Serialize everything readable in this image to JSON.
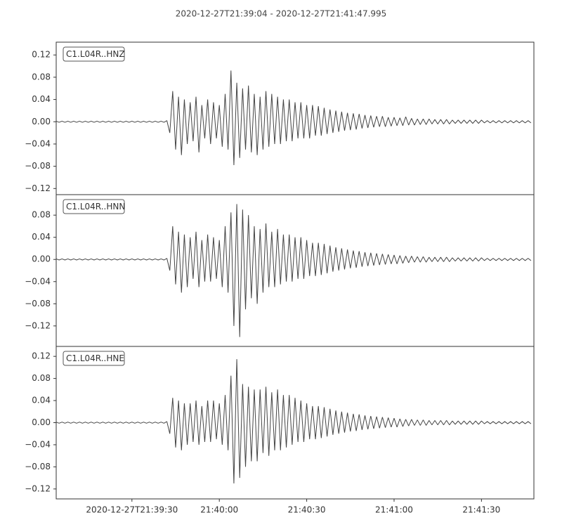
{
  "chart_data": [
    {
      "type": "line",
      "title": "2020-12-27T21:39:04  -  2020-12-27T21:41:47.995",
      "label": "C1.L04R..HNZ",
      "color": "#444444",
      "x": [
        0,
        1,
        2,
        3,
        4,
        5,
        6,
        7,
        8,
        9,
        10,
        11,
        12,
        13,
        14,
        15,
        16,
        17,
        18,
        19,
        20,
        21,
        22,
        23,
        24,
        25,
        26,
        27,
        28,
        29,
        30,
        31,
        32,
        33,
        34,
        35,
        36,
        37,
        38,
        39,
        40,
        41,
        42,
        43,
        44,
        45,
        46,
        47,
        48,
        49,
        50,
        51,
        52,
        53,
        54,
        55,
        56,
        57,
        58,
        59,
        60,
        61,
        62,
        63,
        64,
        65,
        66,
        67,
        68,
        69,
        70,
        71,
        72,
        73,
        74,
        75,
        76,
        77,
        78,
        79,
        80,
        81,
        82,
        83,
        84,
        85,
        86,
        87,
        88,
        89,
        90,
        91,
        92,
        93,
        94,
        95,
        96,
        97,
        98,
        99,
        100,
        101,
        102,
        103,
        104,
        105,
        106,
        107,
        108,
        109,
        110,
        111,
        112,
        113,
        114,
        115,
        116,
        117,
        118,
        119,
        120,
        121,
        122,
        123,
        124,
        125,
        126,
        127,
        128,
        129,
        130,
        131,
        132,
        133,
        134,
        135,
        136,
        137,
        138,
        139,
        140,
        141,
        142,
        143,
        144,
        145,
        146,
        147,
        148,
        149,
        150,
        151,
        152,
        153,
        154,
        155,
        156,
        157,
        158,
        159,
        160,
        161,
        162,
        163
      ],
      "values": [
        0.001,
        -0.001,
        0.001,
        -0.001,
        0.001,
        -0.001,
        0.001,
        -0.001,
        0.001,
        -0.001,
        0.001,
        -0.001,
        0.001,
        -0.001,
        0.001,
        -0.001,
        0.001,
        -0.001,
        0.001,
        -0.001,
        0.001,
        -0.001,
        0.001,
        -0.001,
        0.001,
        -0.001,
        0.001,
        -0.001,
        0.001,
        -0.001,
        0.001,
        -0.001,
        0.001,
        -0.001,
        0.001,
        -0.001,
        0.001,
        -0.001,
        0.002,
        -0.02,
        0.055,
        -0.05,
        0.045,
        -0.06,
        0.04,
        -0.04,
        0.035,
        -0.035,
        0.045,
        -0.055,
        0.03,
        -0.03,
        0.04,
        -0.04,
        0.035,
        -0.03,
        0.03,
        -0.045,
        0.05,
        -0.05,
        0.092,
        -0.078,
        0.07,
        -0.065,
        0.06,
        -0.05,
        0.065,
        -0.055,
        0.05,
        -0.06,
        0.045,
        -0.05,
        0.055,
        -0.045,
        0.05,
        -0.04,
        0.045,
        -0.04,
        0.04,
        -0.035,
        0.04,
        -0.035,
        0.035,
        -0.03,
        0.035,
        -0.03,
        0.03,
        -0.03,
        0.03,
        -0.025,
        0.028,
        -0.025,
        0.025,
        -0.022,
        0.022,
        -0.02,
        0.02,
        -0.018,
        0.018,
        -0.016,
        0.016,
        -0.015,
        0.015,
        -0.014,
        0.014,
        -0.012,
        0.012,
        -0.011,
        0.011,
        -0.01,
        0.01,
        -0.009,
        0.01,
        -0.009,
        0.008,
        -0.008,
        0.008,
        -0.007,
        0.007,
        -0.007,
        0.009,
        -0.006,
        0.006,
        -0.006,
        0.005,
        -0.005,
        0.005,
        -0.005,
        0.005,
        -0.004,
        0.004,
        -0.004,
        0.004,
        -0.004,
        0.004,
        -0.004,
        0.003,
        -0.003,
        0.003,
        -0.003,
        0.003,
        -0.003,
        0.003,
        -0.003,
        0.003,
        -0.003,
        0.003,
        -0.002,
        0.002,
        -0.002,
        0.002,
        -0.002,
        0.002,
        -0.002,
        0.002,
        -0.002,
        0.002,
        -0.002,
        0.002,
        -0.002,
        0.002,
        -0.002,
        0.002,
        -0.002
      ],
      "xlim": [
        0,
        164
      ],
      "ylim": [
        -0.131,
        0.143
      ],
      "yticks": [
        {
          "value": 0.12,
          "label": "0.12"
        },
        {
          "value": 0.08,
          "label": "0.08"
        },
        {
          "value": 0.04,
          "label": "0.04"
        },
        {
          "value": 0,
          "label": "0.00"
        },
        {
          "value": -0.04,
          "label": "−0.04"
        },
        {
          "value": -0.08,
          "label": "−0.08"
        },
        {
          "value": -0.12,
          "label": "−0.12"
        }
      ]
    },
    {
      "type": "line",
      "label": "C1.L04R..HNN",
      "color": "#444444",
      "x": [
        0,
        1,
        2,
        3,
        4,
        5,
        6,
        7,
        8,
        9,
        10,
        11,
        12,
        13,
        14,
        15,
        16,
        17,
        18,
        19,
        20,
        21,
        22,
        23,
        24,
        25,
        26,
        27,
        28,
        29,
        30,
        31,
        32,
        33,
        34,
        35,
        36,
        37,
        38,
        39,
        40,
        41,
        42,
        43,
        44,
        45,
        46,
        47,
        48,
        49,
        50,
        51,
        52,
        53,
        54,
        55,
        56,
        57,
        58,
        59,
        60,
        61,
        62,
        63,
        64,
        65,
        66,
        67,
        68,
        69,
        70,
        71,
        72,
        73,
        74,
        75,
        76,
        77,
        78,
        79,
        80,
        81,
        82,
        83,
        84,
        85,
        86,
        87,
        88,
        89,
        90,
        91,
        92,
        93,
        94,
        95,
        96,
        97,
        98,
        99,
        100,
        101,
        102,
        103,
        104,
        105,
        106,
        107,
        108,
        109,
        110,
        111,
        112,
        113,
        114,
        115,
        116,
        117,
        118,
        119,
        120,
        121,
        122,
        123,
        124,
        125,
        126,
        127,
        128,
        129,
        130,
        131,
        132,
        133,
        134,
        135,
        136,
        137,
        138,
        139,
        140,
        141,
        142,
        143,
        144,
        145,
        146,
        147,
        148,
        149,
        150,
        151,
        152,
        153,
        154,
        155,
        156,
        157,
        158,
        159,
        160,
        161,
        162,
        163
      ],
      "values": [
        0.001,
        -0.001,
        0.001,
        -0.001,
        0.001,
        -0.001,
        0.001,
        -0.001,
        0.001,
        -0.001,
        0.001,
        -0.001,
        0.001,
        -0.001,
        0.001,
        -0.001,
        0.001,
        -0.001,
        0.001,
        -0.001,
        0.001,
        -0.001,
        0.001,
        -0.001,
        0.001,
        -0.001,
        0.001,
        -0.001,
        0.001,
        -0.001,
        0.001,
        -0.001,
        0.001,
        -0.001,
        0.001,
        -0.001,
        0.001,
        -0.001,
        0.002,
        -0.02,
        0.06,
        -0.045,
        0.05,
        -0.06,
        0.045,
        -0.05,
        0.04,
        -0.035,
        0.05,
        -0.05,
        0.035,
        -0.04,
        0.045,
        -0.04,
        0.04,
        -0.035,
        0.035,
        -0.05,
        0.06,
        -0.06,
        0.085,
        -0.12,
        0.1,
        -0.14,
        0.09,
        -0.09,
        0.08,
        -0.07,
        0.06,
        -0.08,
        0.055,
        -0.06,
        0.065,
        -0.05,
        0.05,
        -0.05,
        0.055,
        -0.045,
        0.045,
        -0.04,
        0.045,
        -0.04,
        0.04,
        -0.035,
        0.04,
        -0.035,
        0.035,
        -0.03,
        0.03,
        -0.03,
        0.03,
        -0.028,
        0.028,
        -0.025,
        0.025,
        -0.022,
        0.022,
        -0.02,
        0.02,
        -0.018,
        0.018,
        -0.016,
        0.016,
        -0.015,
        0.015,
        -0.013,
        0.013,
        -0.012,
        0.012,
        -0.011,
        0.011,
        -0.01,
        0.01,
        -0.009,
        0.009,
        -0.008,
        0.008,
        -0.008,
        0.007,
        -0.007,
        0.006,
        -0.006,
        0.006,
        -0.005,
        0.005,
        -0.005,
        0.005,
        -0.005,
        0.004,
        -0.004,
        0.004,
        -0.004,
        0.004,
        -0.004,
        0.004,
        -0.004,
        0.003,
        -0.003,
        0.003,
        -0.003,
        0.003,
        -0.003,
        0.003,
        -0.003,
        0.003,
        -0.003,
        0.003,
        -0.002,
        0.002,
        -0.002,
        0.002,
        -0.002,
        0.002,
        -0.002,
        0.002,
        -0.002,
        0.002,
        -0.002,
        0.002,
        -0.002,
        0.002,
        -0.002,
        0.002,
        -0.002
      ],
      "xlim": [
        0,
        164
      ],
      "ylim": [
        -0.157,
        0.117
      ],
      "yticks": [
        {
          "value": 0.08,
          "label": "0.08"
        },
        {
          "value": 0.04,
          "label": "0.04"
        },
        {
          "value": 0,
          "label": "0.00"
        },
        {
          "value": -0.04,
          "label": "−0.04"
        },
        {
          "value": -0.08,
          "label": "−0.08"
        },
        {
          "value": -0.12,
          "label": "−0.12"
        }
      ]
    },
    {
      "type": "line",
      "label": "C1.L04R..HNE",
      "color": "#444444",
      "x": [
        0,
        1,
        2,
        3,
        4,
        5,
        6,
        7,
        8,
        9,
        10,
        11,
        12,
        13,
        14,
        15,
        16,
        17,
        18,
        19,
        20,
        21,
        22,
        23,
        24,
        25,
        26,
        27,
        28,
        29,
        30,
        31,
        32,
        33,
        34,
        35,
        36,
        37,
        38,
        39,
        40,
        41,
        42,
        43,
        44,
        45,
        46,
        47,
        48,
        49,
        50,
        51,
        52,
        53,
        54,
        55,
        56,
        57,
        58,
        59,
        60,
        61,
        62,
        63,
        64,
        65,
        66,
        67,
        68,
        69,
        70,
        71,
        72,
        73,
        74,
        75,
        76,
        77,
        78,
        79,
        80,
        81,
        82,
        83,
        84,
        85,
        86,
        87,
        88,
        89,
        90,
        91,
        92,
        93,
        94,
        95,
        96,
        97,
        98,
        99,
        100,
        101,
        102,
        103,
        104,
        105,
        106,
        107,
        108,
        109,
        110,
        111,
        112,
        113,
        114,
        115,
        116,
        117,
        118,
        119,
        120,
        121,
        122,
        123,
        124,
        125,
        126,
        127,
        128,
        129,
        130,
        131,
        132,
        133,
        134,
        135,
        136,
        137,
        138,
        139,
        140,
        141,
        142,
        143,
        144,
        145,
        146,
        147,
        148,
        149,
        150,
        151,
        152,
        153,
        154,
        155,
        156,
        157,
        158,
        159,
        160,
        161,
        162,
        163
      ],
      "values": [
        0.001,
        -0.001,
        0.001,
        -0.001,
        0.001,
        -0.001,
        0.001,
        -0.001,
        0.001,
        -0.001,
        0.001,
        -0.001,
        0.001,
        -0.001,
        0.001,
        -0.001,
        0.001,
        -0.001,
        0.001,
        -0.001,
        0.001,
        -0.001,
        0.001,
        -0.001,
        0.001,
        -0.001,
        0.001,
        -0.001,
        0.001,
        -0.001,
        0.001,
        -0.001,
        0.001,
        -0.001,
        0.001,
        -0.001,
        0.001,
        -0.001,
        0.002,
        -0.02,
        0.045,
        -0.045,
        0.04,
        -0.05,
        0.035,
        -0.04,
        0.035,
        -0.035,
        0.04,
        -0.04,
        0.03,
        -0.035,
        0.04,
        -0.035,
        0.04,
        -0.03,
        0.035,
        -0.04,
        0.05,
        -0.05,
        0.085,
        -0.11,
        0.115,
        -0.1,
        0.07,
        -0.08,
        0.065,
        -0.07,
        0.06,
        -0.07,
        0.06,
        -0.055,
        0.065,
        -0.06,
        0.055,
        -0.05,
        0.06,
        -0.05,
        0.05,
        -0.045,
        0.05,
        -0.04,
        0.045,
        -0.035,
        0.04,
        -0.035,
        0.035,
        -0.03,
        0.03,
        -0.03,
        0.03,
        -0.028,
        0.028,
        -0.025,
        0.025,
        -0.022,
        0.022,
        -0.02,
        0.02,
        -0.018,
        0.018,
        -0.016,
        0.016,
        -0.015,
        0.015,
        -0.013,
        0.013,
        -0.012,
        0.012,
        -0.011,
        0.011,
        -0.01,
        0.01,
        -0.009,
        0.009,
        -0.008,
        0.008,
        -0.008,
        0.007,
        -0.007,
        0.006,
        -0.006,
        0.006,
        -0.005,
        0.005,
        -0.005,
        0.005,
        -0.005,
        0.004,
        -0.004,
        0.004,
        -0.004,
        0.004,
        -0.004,
        0.004,
        -0.004,
        0.003,
        -0.003,
        0.003,
        -0.003,
        0.003,
        -0.003,
        0.003,
        -0.003,
        0.003,
        -0.003,
        0.003,
        -0.002,
        0.002,
        -0.002,
        0.002,
        -0.002,
        0.002,
        -0.002,
        0.002,
        -0.002,
        0.002,
        -0.002,
        0.002,
        -0.002,
        0.002,
        -0.002,
        0.002,
        -0.002
      ],
      "xlim": [
        0,
        164
      ],
      "ylim": [
        -0.138,
        0.138
      ],
      "yticks": [
        {
          "value": 0.12,
          "label": "0.12"
        },
        {
          "value": 0.08,
          "label": "0.08"
        },
        {
          "value": 0.04,
          "label": "0.04"
        },
        {
          "value": 0,
          "label": "0.00"
        },
        {
          "value": -0.04,
          "label": "−0.04"
        },
        {
          "value": -0.08,
          "label": "−0.08"
        },
        {
          "value": -0.12,
          "label": "−0.12"
        }
      ],
      "xticks": [
        {
          "value": 26,
          "label": "2020-12-27T21:39:30"
        },
        {
          "value": 56,
          "label": "21:40:00"
        },
        {
          "value": 86,
          "label": "21:40:30"
        },
        {
          "value": 116,
          "label": "21:41:00"
        },
        {
          "value": 146,
          "label": "21:41:30"
        }
      ]
    }
  ]
}
